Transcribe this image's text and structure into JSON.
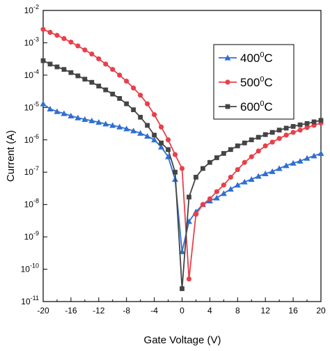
{
  "chart_data": {
    "type": "line",
    "title": "",
    "xlabel": "Gate Voltage (V)",
    "ylabel": "Current (A)",
    "xlim": [
      -20,
      20
    ],
    "ylim": [
      1e-11,
      0.01
    ],
    "y_scale": "log",
    "grid": false,
    "legend_position": "top-right",
    "x_ticks": [
      {
        "value": -20,
        "label": "-20"
      },
      {
        "value": -16,
        "label": "-16"
      },
      {
        "value": -12,
        "label": "-12"
      },
      {
        "value": -8,
        "label": "-8"
      },
      {
        "value": -4,
        "label": "-4"
      },
      {
        "value": 0,
        "label": "0"
      },
      {
        "value": 4,
        "label": "4"
      },
      {
        "value": 8,
        "label": "8"
      },
      {
        "value": 12,
        "label": "12"
      },
      {
        "value": 16,
        "label": "16"
      },
      {
        "value": 20,
        "label": "20"
      }
    ],
    "y_ticks": [
      {
        "value": 0.01,
        "base": "10",
        "exp": "-2"
      },
      {
        "value": 0.001,
        "base": "10",
        "exp": "-3"
      },
      {
        "value": 0.0001,
        "base": "10",
        "exp": "-4"
      },
      {
        "value": 1e-05,
        "base": "10",
        "exp": "-5"
      },
      {
        "value": 1e-06,
        "base": "10",
        "exp": "-6"
      },
      {
        "value": 1e-07,
        "base": "10",
        "exp": "-7"
      },
      {
        "value": 1e-08,
        "base": "10",
        "exp": "-8"
      },
      {
        "value": 1e-09,
        "base": "10",
        "exp": "-9"
      },
      {
        "value": 1e-10,
        "base": "10",
        "exp": "-10"
      },
      {
        "value": 1e-11,
        "base": "10",
        "exp": "-11"
      }
    ],
    "series": [
      {
        "name_main": "400",
        "name_sup": "0",
        "name_unit": "C",
        "color": "#2f6fd0",
        "marker": "triangle",
        "x": [
          -20,
          -19,
          -18,
          -17,
          -16,
          -15,
          -14,
          -13,
          -12,
          -11,
          -10,
          -9,
          -8,
          -7,
          -6,
          -5,
          -4,
          -3,
          -2,
          -1,
          0,
          1,
          2,
          3,
          4,
          5,
          6,
          7,
          8,
          9,
          10,
          11,
          12,
          13,
          14,
          15,
          16,
          17,
          18,
          19,
          20
        ],
        "y": [
          1.3e-05,
          9e-06,
          7.5e-06,
          6.5e-06,
          5.5e-06,
          4.8e-06,
          4.3e-06,
          3.9e-06,
          3.5e-06,
          3.1e-06,
          2.8e-06,
          2.5e-06,
          2.2e-06,
          1.9e-06,
          1.6e-06,
          1.3e-06,
          1e-06,
          6e-07,
          3e-07,
          6e-08,
          3.5e-10,
          3e-09,
          6e-09,
          1e-08,
          1.3e-08,
          1.6e-08,
          2.2e-08,
          3e-08,
          4e-08,
          5e-08,
          6e-08,
          7.5e-08,
          9e-08,
          1.05e-07,
          1.3e-07,
          1.6e-07,
          1.9e-07,
          2.2e-07,
          2.7e-07,
          3.2e-07,
          3.8e-07
        ]
      },
      {
        "name_main": "500",
        "name_sup": "0",
        "name_unit": "C",
        "color": "#e8404a",
        "marker": "circle",
        "x": [
          -20,
          -19,
          -18,
          -17,
          -16,
          -15,
          -14,
          -13,
          -12,
          -11,
          -10,
          -9,
          -8,
          -7,
          -6,
          -5,
          -4,
          -3,
          -2,
          -1,
          0,
          1,
          2,
          3,
          4,
          5,
          6,
          7,
          8,
          9,
          10,
          11,
          12,
          13,
          14,
          15,
          16,
          17,
          18,
          19,
          20
        ],
        "y": [
          0.0026,
          0.0021,
          0.0017,
          0.00135,
          0.00105,
          0.0008,
          0.0006,
          0.00045,
          0.00032,
          0.00022,
          0.00015,
          0.0001,
          6.5e-05,
          4e-05,
          2.4e-05,
          1.3e-05,
          6e-06,
          2.5e-06,
          1e-06,
          3.5e-07,
          1.3e-07,
          5e-11,
          5e-09,
          1e-08,
          1.5e-08,
          2.5e-08,
          4e-08,
          7e-08,
          1.2e-07,
          2e-07,
          3e-07,
          4.5e-07,
          6.5e-07,
          8.5e-07,
          1.1e-06,
          1.4e-06,
          1.7e-06,
          2e-06,
          2.4e-06,
          2.8e-06,
          3.3e-06
        ]
      },
      {
        "name_main": "600",
        "name_sup": "0",
        "name_unit": "C",
        "color": "#444444",
        "marker": "square",
        "x": [
          -20,
          -19,
          -18,
          -17,
          -16,
          -15,
          -14,
          -13,
          -12,
          -11,
          -10,
          -9,
          -8,
          -7,
          -6,
          -5,
          -4,
          -3,
          -2,
          -1,
          0,
          1,
          2,
          3,
          4,
          5,
          6,
          7,
          8,
          9,
          10,
          11,
          12,
          13,
          14,
          15,
          16,
          17,
          18,
          19,
          20
        ],
        "y": [
          0.00028,
          0.00022,
          0.00018,
          0.00015,
          0.00012,
          9.5e-05,
          7.5e-05,
          6e-05,
          4.6e-05,
          3.5e-05,
          2.6e-05,
          1.9e-05,
          1.3e-05,
          8.5e-06,
          5e-06,
          2.8e-06,
          1.4e-06,
          8e-07,
          5e-07,
          1e-07,
          2.5e-11,
          1.7e-08,
          7e-08,
          1.3e-07,
          2e-07,
          2.8e-07,
          3.8e-07,
          5e-07,
          6.5e-07,
          8e-07,
          1e-06,
          1.2e-06,
          1.45e-06,
          1.7e-06,
          2e-06,
          2.3e-06,
          2.6e-06,
          2.9e-06,
          3.2e-06,
          3.6e-06,
          4e-06
        ]
      }
    ]
  }
}
